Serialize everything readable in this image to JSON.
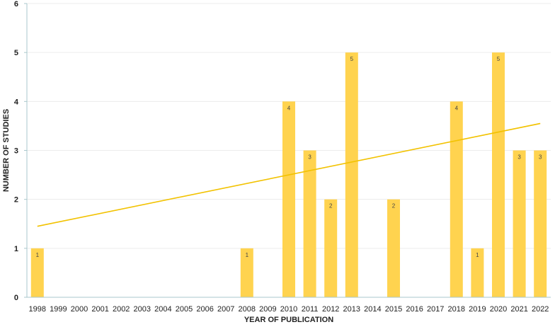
{
  "chart_data": {
    "type": "bar",
    "title": "",
    "xlabel": "YEAR OF PUBLICATION",
    "ylabel": "NUMBER OF STUDIES",
    "ylim": [
      0,
      6
    ],
    "yticks": [
      "0",
      "1",
      "2",
      "3",
      "4",
      "5",
      "6"
    ],
    "grid": true,
    "legend": "none",
    "categories": [
      "1998",
      "1999",
      "2000",
      "2001",
      "2002",
      "2003",
      "2004",
      "2005",
      "2006",
      "2007",
      "2008",
      "2009",
      "2010",
      "2011",
      "2012",
      "2013",
      "2014",
      "2015",
      "2016",
      "2017",
      "2018",
      "2019",
      "2020",
      "2021",
      "2022"
    ],
    "values": [
      1,
      0,
      0,
      0,
      0,
      0,
      0,
      0,
      0,
      0,
      1,
      0,
      4,
      3,
      2,
      5,
      0,
      2,
      0,
      0,
      4,
      1,
      5,
      3,
      3
    ],
    "data_labels": [
      "1",
      "",
      "",
      "",
      "",
      "",
      "",
      "",
      "",
      "",
      "1",
      "",
      "4",
      "3",
      "2",
      "5",
      "",
      "2",
      "",
      "",
      "4",
      "1",
      "5",
      "3",
      "3"
    ],
    "trendline": {
      "type": "linear",
      "start_value": 1.45,
      "end_value": 3.55
    },
    "colors": {
      "bar": "#FFD34F",
      "trendline": "#F2C200",
      "axis": "#A9C7CC",
      "grid": "#ECECEC"
    }
  }
}
